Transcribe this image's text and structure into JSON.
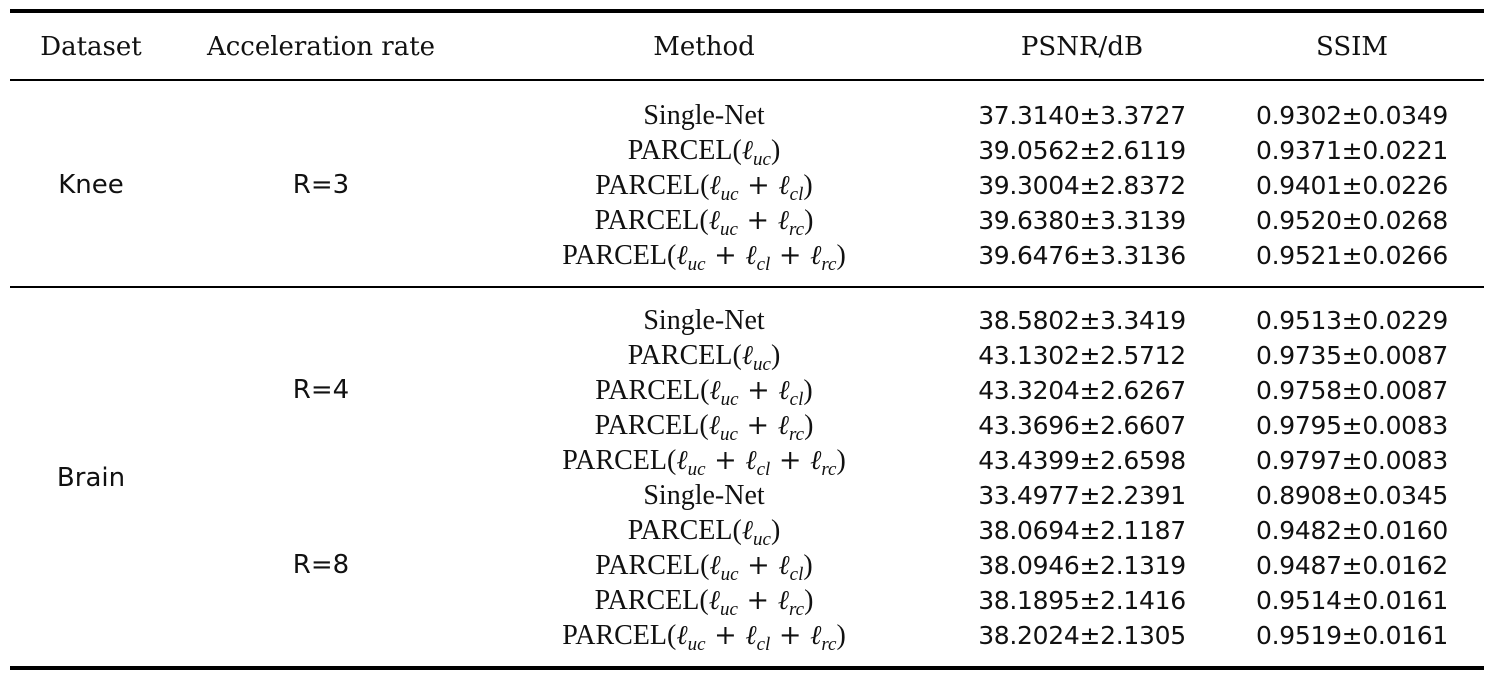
{
  "header": {
    "dataset": "Dataset",
    "acceleration": "Acceleration rate",
    "method": "Method",
    "psnr": "PSNR/dB",
    "ssim": "SSIM"
  },
  "groups": [
    {
      "dataset": "Knee",
      "blocks": [
        {
          "rate": "R=3",
          "rows": [
            {
              "method": "Single-Net",
              "psnr": "37.3140±3.3727",
              "ssim": "0.9302±0.0349"
            },
            {
              "method": "PARCEL(ℓuc)",
              "psnr": "39.0562±2.6119",
              "ssim": "0.9371±0.0221"
            },
            {
              "method": "PARCEL(ℓuc + ℓcl)",
              "psnr": "39.3004±2.8372",
              "ssim": "0.9401±0.0226"
            },
            {
              "method": "PARCEL(ℓuc + ℓrc)",
              "psnr": "39.6380±3.3139",
              "ssim": "0.9520±0.0268"
            },
            {
              "method": "PARCEL(ℓuc + ℓcl + ℓrc)",
              "psnr": "39.6476±3.3136",
              "ssim": "0.9521±0.0266"
            }
          ]
        }
      ]
    },
    {
      "dataset": "Brain",
      "blocks": [
        {
          "rate": "R=4",
          "rows": [
            {
              "method": "Single-Net",
              "psnr": "38.5802±3.3419",
              "ssim": "0.9513±0.0229"
            },
            {
              "method": "PARCEL(ℓuc)",
              "psnr": "43.1302±2.5712",
              "ssim": "0.9735±0.0087"
            },
            {
              "method": "PARCEL(ℓuc + ℓcl)",
              "psnr": "43.3204±2.6267",
              "ssim": "0.9758±0.0087"
            },
            {
              "method": "PARCEL(ℓuc + ℓrc)",
              "psnr": "43.3696±2.6607",
              "ssim": "0.9795±0.0083"
            },
            {
              "method": "PARCEL(ℓuc + ℓcl + ℓrc)",
              "psnr": "43.4399±2.6598",
              "ssim": "0.9797±0.0083"
            }
          ]
        },
        {
          "rate": "R=8",
          "rows": [
            {
              "method": "Single-Net",
              "psnr": "33.4977±2.2391",
              "ssim": "0.8908±0.0345"
            },
            {
              "method": "PARCEL(ℓuc)",
              "psnr": "38.0694±2.1187",
              "ssim": "0.9482±0.0160"
            },
            {
              "method": "PARCEL(ℓuc + ℓcl)",
              "psnr": "38.0946±2.1319",
              "ssim": "0.9487±0.0162"
            },
            {
              "method": "PARCEL(ℓuc + ℓrc)",
              "psnr": "38.1895±2.1416",
              "ssim": "0.9514±0.0161"
            },
            {
              "method": "PARCEL(ℓuc + ℓcl + ℓrc)",
              "psnr": "38.2024±2.1305",
              "ssim": "0.9519±0.0161"
            }
          ]
        }
      ]
    }
  ]
}
